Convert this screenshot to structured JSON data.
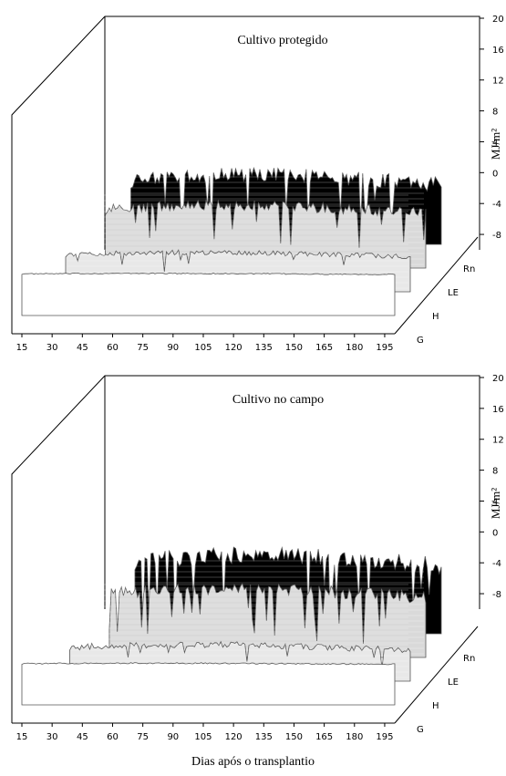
{
  "xlabel": "Dias após o transplantio",
  "chart_data": [
    {
      "type": "area",
      "title": "Cultivo protegido",
      "unit": "MJ/m²",
      "x_ticks": [
        15,
        30,
        45,
        60,
        75,
        90,
        105,
        120,
        135,
        150,
        165,
        180,
        195
      ],
      "z_ticks": [
        20,
        16,
        12,
        8,
        4,
        0,
        -4,
        -8
      ],
      "series_names": [
        "Rn",
        "LE",
        "H",
        "G"
      ],
      "xlim": [
        15,
        200
      ],
      "zlim": [
        -10,
        20
      ],
      "start_day": {
        "Rn": 46,
        "LE": 41,
        "H": 29,
        "G": 15
      },
      "series_profile": {
        "Rn": {
          "mean": 5,
          "amp": 3.5,
          "dips": 24
        },
        "LE": {
          "mean": 3.8,
          "amp": 2.5,
          "dips": 12
        },
        "H": {
          "mean": -1.2,
          "amp": 1.2,
          "dips": 6
        },
        "G": {
          "mean": -0.2,
          "amp": 0.25,
          "dips": 0
        }
      },
      "colors": {
        "Rn": "#000000",
        "LE": "#d9d9d9",
        "H": "#e8e8e8",
        "G": "#ffffff"
      }
    },
    {
      "type": "area",
      "title": "Cultivo no campo",
      "unit": "MJ/m²",
      "x_ticks": [
        15,
        30,
        45,
        60,
        75,
        90,
        105,
        120,
        135,
        150,
        165,
        180,
        195
      ],
      "z_ticks": [
        20,
        16,
        12,
        8,
        4,
        0,
        -4,
        -8
      ],
      "series_names": [
        "Rn",
        "LE",
        "H",
        "G"
      ],
      "xlim": [
        15,
        200
      ],
      "zlim": [
        -10,
        20
      ],
      "start_day": {
        "Rn": 48,
        "LE": 43,
        "H": 31,
        "G": 15
      },
      "series_profile": {
        "Rn": {
          "mean": 7,
          "amp": 4,
          "dips": 28
        },
        "LE": {
          "mean": 5,
          "amp": 3,
          "dips": 22
        },
        "H": {
          "mean": -2,
          "amp": 1.5,
          "dips": 8
        },
        "G": {
          "mean": -0.3,
          "amp": 0.3,
          "dips": 0
        }
      },
      "colors": {
        "Rn": "#000000",
        "LE": "#d9d9d9",
        "H": "#e8e8e8",
        "G": "#ffffff"
      }
    }
  ]
}
